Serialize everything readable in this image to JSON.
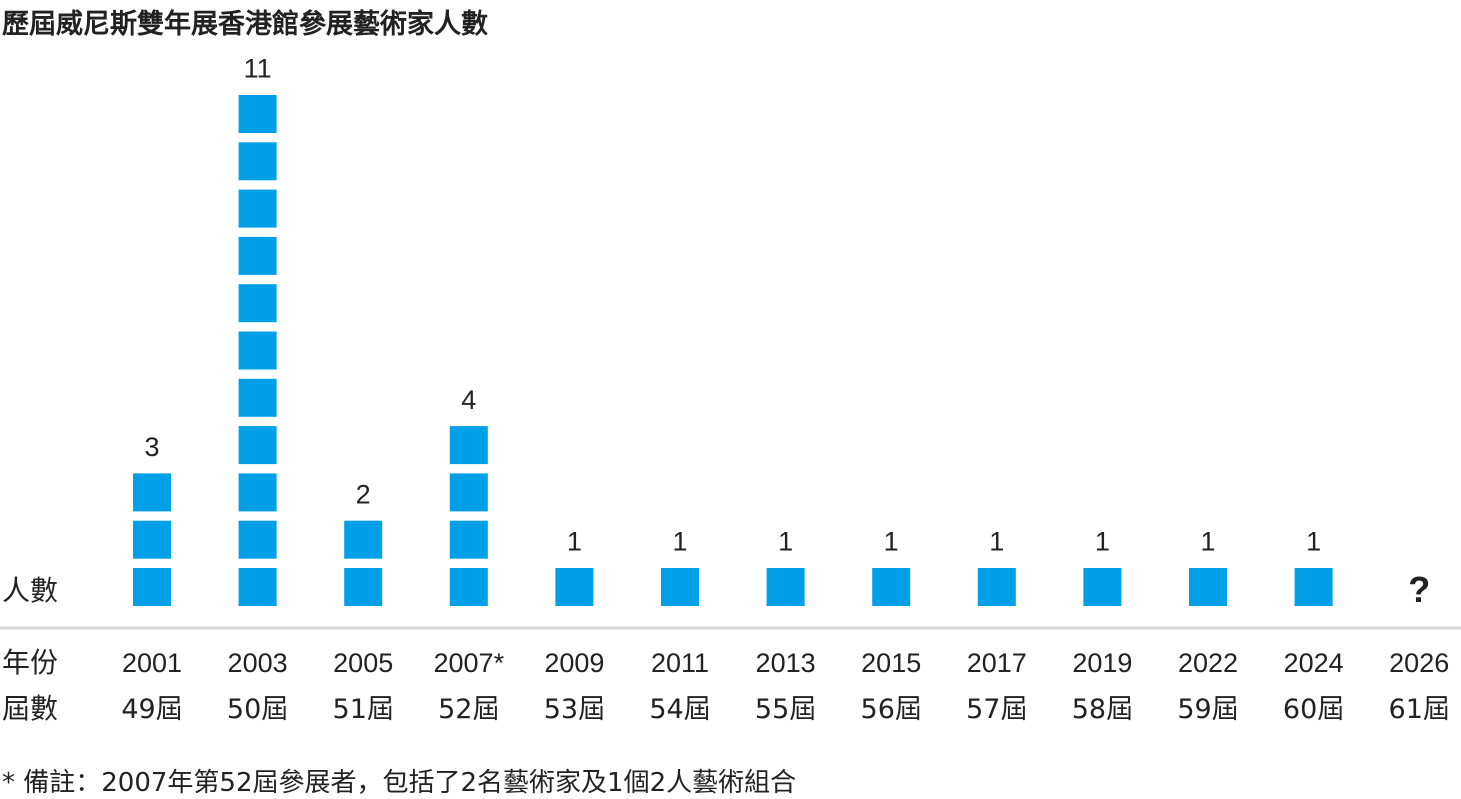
{
  "title": "歷屆威尼斯雙年展香港館參展藝術家人數",
  "footnote": "* 備註：2007年第52屆參展者，包括了2名藝術家及1個2人藝術組合",
  "row_labels": {
    "count": "人數",
    "year": "年份",
    "edition": "屆數"
  },
  "colors": {
    "square": "#00a0e9",
    "axis": "#d9d9d9",
    "text": "#222222"
  },
  "chart_data": {
    "type": "bar",
    "style": "stacked squares (pictogram)",
    "categories": [
      "2001",
      "2003",
      "2005",
      "2007*",
      "2009",
      "2011",
      "2013",
      "2015",
      "2017",
      "2019",
      "2022",
      "2024",
      "2026"
    ],
    "editions": [
      "49屆",
      "50屆",
      "51屆",
      "52屆",
      "53屆",
      "54屆",
      "55屆",
      "56屆",
      "57屆",
      "58屆",
      "59屆",
      "60屆",
      "61屆"
    ],
    "values": [
      3,
      11,
      2,
      4,
      1,
      1,
      1,
      1,
      1,
      1,
      1,
      1,
      null
    ],
    "value_labels": [
      "3",
      "11",
      "2",
      "4",
      "1",
      "1",
      "1",
      "1",
      "1",
      "1",
      "1",
      "1",
      "?"
    ],
    "ylabel": "人數",
    "xlabel": "年份"
  }
}
